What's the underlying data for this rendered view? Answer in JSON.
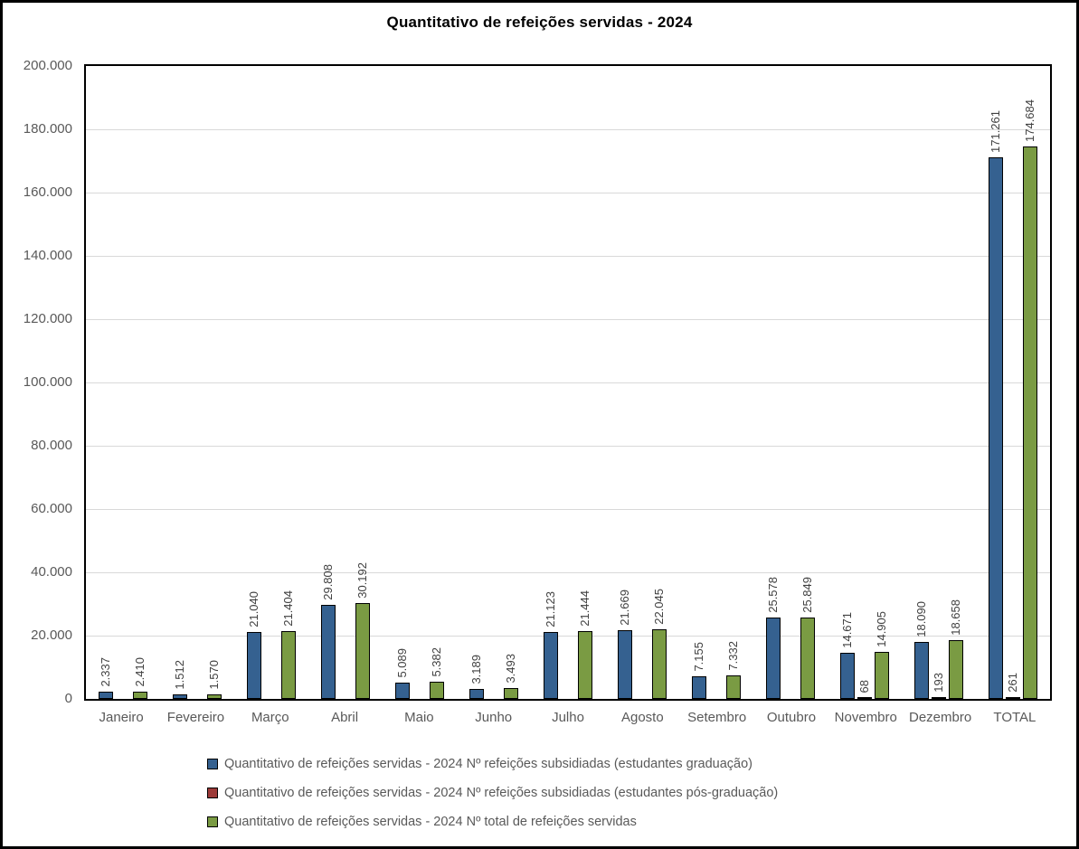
{
  "title": "Quantitativo de refeições servidas - 2024",
  "chart_data": {
    "type": "bar",
    "title": "Quantitativo de refeições servidas - 2024",
    "categories": [
      "Janeiro",
      "Fevereiro",
      "Março",
      "Abril",
      "Maio",
      "Junho",
      "Julho",
      "Agosto",
      "Setembro",
      "Outubro",
      "Novembro",
      "Dezembro",
      "TOTAL"
    ],
    "ylim": [
      0,
      200000
    ],
    "ytick_step": 20000,
    "yticks": [
      {
        "value": 0,
        "label": "0"
      },
      {
        "value": 20000,
        "label": "20.000"
      },
      {
        "value": 40000,
        "label": "40.000"
      },
      {
        "value": 60000,
        "label": "60.000"
      },
      {
        "value": 80000,
        "label": "80.000"
      },
      {
        "value": 100000,
        "label": "100.000"
      },
      {
        "value": 120000,
        "label": "120.000"
      },
      {
        "value": 140000,
        "label": "140.000"
      },
      {
        "value": 160000,
        "label": "160.000"
      },
      {
        "value": 180000,
        "label": "180.000"
      },
      {
        "value": 200000,
        "label": "200.000"
      }
    ],
    "grid": true,
    "legend_position": "bottom",
    "series": [
      {
        "name": "Quantitativo de refeições servidas - 2024 Nº refeições subsidiadas (estudantes graduação)",
        "color": "#356190",
        "values": [
          2337,
          1512,
          21040,
          29808,
          5089,
          3189,
          21123,
          21669,
          7155,
          25578,
          14671,
          18090,
          171261
        ],
        "labels": [
          "2.337",
          "1.512",
          "21.040",
          "29.808",
          "5.089",
          "3.189",
          "21.123",
          "21.669",
          "7.155",
          "25.578",
          "14.671",
          "18.090",
          "171.261"
        ]
      },
      {
        "name": "Quantitativo de refeições servidas - 2024 Nº refeições subsidiadas (estudantes pós-graduação)",
        "color": "#9c3a38",
        "values": [
          null,
          null,
          null,
          null,
          null,
          null,
          null,
          null,
          null,
          null,
          68,
          193,
          261
        ],
        "labels": [
          "",
          "",
          "",
          "",
          "",
          "",
          "",
          "",
          "",
          "",
          "68",
          "193",
          "261"
        ]
      },
      {
        "name": "Quantitativo de refeições servidas - 2024 Nº total de refeições servidas",
        "color": "#7a9b43",
        "values": [
          2410,
          1570,
          21404,
          30192,
          5382,
          3493,
          21444,
          22045,
          7332,
          25849,
          14905,
          18658,
          174684
        ],
        "labels": [
          "2.410",
          "1.570",
          "21.404",
          "30.192",
          "5.382",
          "3.493",
          "21.444",
          "22.045",
          "7.332",
          "25.849",
          "14.905",
          "18.658",
          "174.684"
        ]
      }
    ],
    "style": {
      "bar_border_color": "#000000",
      "gridline_color": "#d9d9d9",
      "axis_text_color": "#595959",
      "data_label_color": "#404040",
      "plot_border_color": "#000000"
    }
  }
}
